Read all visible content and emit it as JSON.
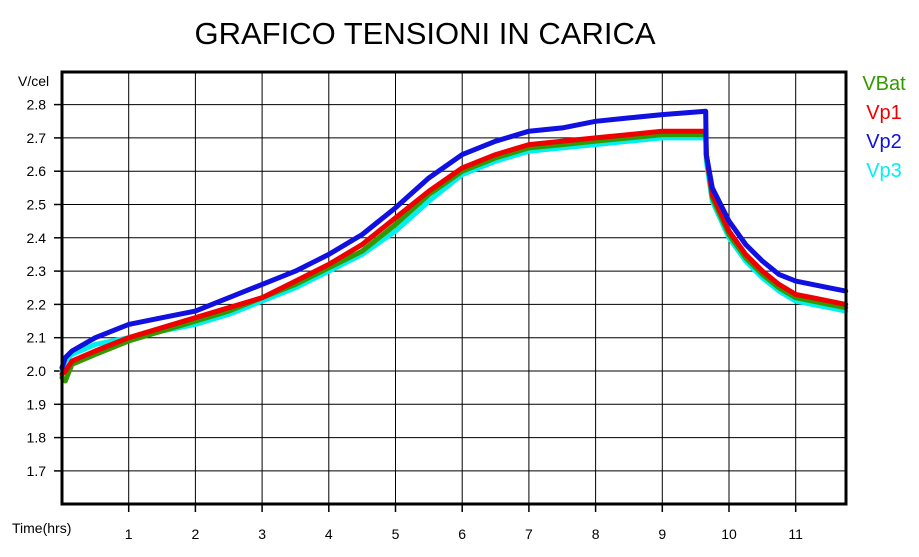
{
  "chart_data": {
    "type": "line",
    "title": "GRAFICO TENSIONI IN CARICA",
    "xlabel": "Time(hrs)",
    "ylabel": "V/cel",
    "xlim": [
      0,
      11.75
    ],
    "ylim": [
      1.6,
      2.9
    ],
    "x_ticks": [
      1,
      2,
      3,
      4,
      5,
      6,
      7,
      8,
      9,
      10,
      11
    ],
    "y_ticks": [
      1.7,
      1.8,
      1.9,
      2.0,
      2.1,
      2.2,
      2.3,
      2.4,
      2.5,
      2.6,
      2.7,
      2.8
    ],
    "grid": true,
    "legend_position": "right",
    "series": [
      {
        "name": "VBat",
        "color": "#339900",
        "x": [
          0,
          0.05,
          0.15,
          0.5,
          1,
          1.5,
          2,
          2.5,
          3,
          3.5,
          4,
          4.5,
          5,
          5.5,
          6,
          6.5,
          7,
          7.5,
          8,
          8.5,
          9,
          9.65,
          9.66,
          9.75,
          10,
          10.25,
          10.5,
          10.75,
          11,
          11.25,
          11.5,
          11.75
        ],
        "y": [
          1.98,
          1.97,
          2.02,
          2.05,
          2.09,
          2.12,
          2.15,
          2.18,
          2.22,
          2.26,
          2.31,
          2.36,
          2.44,
          2.53,
          2.6,
          2.64,
          2.67,
          2.68,
          2.69,
          2.7,
          2.71,
          2.71,
          2.65,
          2.52,
          2.41,
          2.34,
          2.29,
          2.25,
          2.22,
          2.21,
          2.2,
          2.19
        ]
      },
      {
        "name": "Vp1",
        "color": "#ee0000",
        "x": [
          0,
          0.05,
          0.15,
          0.5,
          1,
          1.5,
          2,
          2.5,
          3,
          3.5,
          4,
          4.5,
          5,
          5.5,
          6,
          6.5,
          7,
          7.5,
          8,
          8.5,
          9,
          9.65,
          9.66,
          9.75,
          10,
          10.25,
          10.5,
          10.75,
          11,
          11.25,
          11.5,
          11.75
        ],
        "y": [
          1.99,
          2.0,
          2.03,
          2.06,
          2.1,
          2.13,
          2.16,
          2.19,
          2.22,
          2.27,
          2.32,
          2.38,
          2.46,
          2.54,
          2.61,
          2.65,
          2.68,
          2.69,
          2.7,
          2.71,
          2.72,
          2.72,
          2.65,
          2.53,
          2.42,
          2.35,
          2.3,
          2.26,
          2.23,
          2.22,
          2.21,
          2.2
        ]
      },
      {
        "name": "Vp2",
        "color": "#1010e0",
        "x": [
          0,
          0.05,
          0.15,
          0.5,
          1,
          1.5,
          2,
          2.5,
          3,
          3.5,
          4,
          4.5,
          5,
          5.5,
          6,
          6.5,
          7,
          7.5,
          8,
          8.5,
          9,
          9.65,
          9.66,
          9.75,
          10,
          10.25,
          10.5,
          10.75,
          11,
          11.25,
          11.5,
          11.75
        ],
        "y": [
          2.01,
          2.04,
          2.06,
          2.1,
          2.14,
          2.16,
          2.18,
          2.22,
          2.26,
          2.3,
          2.35,
          2.41,
          2.49,
          2.58,
          2.65,
          2.69,
          2.72,
          2.73,
          2.75,
          2.76,
          2.77,
          2.78,
          2.65,
          2.55,
          2.45,
          2.38,
          2.33,
          2.29,
          2.27,
          2.26,
          2.25,
          2.24
        ]
      },
      {
        "name": "Vp3",
        "color": "#00f0f0",
        "x": [
          0,
          0.05,
          0.15,
          0.5,
          1,
          1.5,
          2,
          2.5,
          3,
          3.5,
          4,
          4.5,
          5,
          5.5,
          6,
          6.5,
          7,
          7.5,
          8,
          8.5,
          9,
          9.65,
          9.66,
          9.75,
          10,
          10.25,
          10.5,
          10.75,
          11,
          11.25,
          11.5,
          11.75
        ],
        "y": [
          2.0,
          2.03,
          2.05,
          2.08,
          2.1,
          2.12,
          2.14,
          2.17,
          2.21,
          2.25,
          2.3,
          2.35,
          2.42,
          2.51,
          2.59,
          2.63,
          2.66,
          2.67,
          2.68,
          2.69,
          2.7,
          2.7,
          2.63,
          2.51,
          2.4,
          2.33,
          2.28,
          2.24,
          2.21,
          2.2,
          2.19,
          2.18
        ]
      }
    ]
  }
}
